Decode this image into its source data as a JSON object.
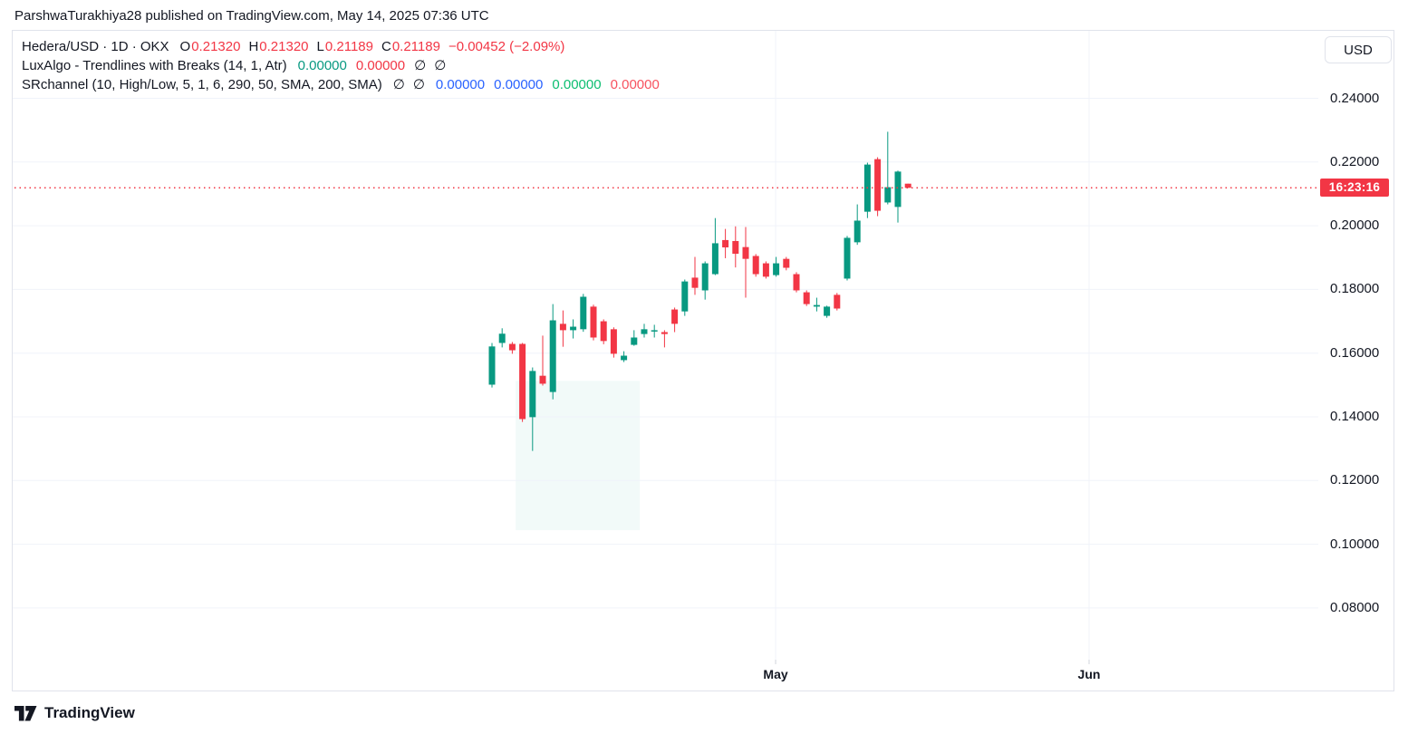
{
  "attribution": "ParshwaTurakhiya28 published on TradingView.com, May 14, 2025 07:36 UTC",
  "legend": {
    "rows": [
      {
        "name": "symbol-legend-row",
        "parts": [
          {
            "text": "Hedera/USD · 1D · OKX",
            "color": "#131722",
            "pad": 12
          },
          {
            "text": "O",
            "color": "#131722",
            "pad": 1
          },
          {
            "text": "0.21320",
            "color": "#F23645",
            "pad": 9
          },
          {
            "text": "H",
            "color": "#131722",
            "pad": 1
          },
          {
            "text": "0.21320",
            "color": "#F23645",
            "pad": 9
          },
          {
            "text": "L",
            "color": "#131722",
            "pad": 1
          },
          {
            "text": "0.21189",
            "color": "#F23645",
            "pad": 9
          },
          {
            "text": "C",
            "color": "#131722",
            "pad": 1
          },
          {
            "text": "0.21189",
            "color": "#F23645",
            "pad": 9
          },
          {
            "text": "−0.00452 (−2.09%)",
            "color": "#F23645",
            "pad": 0
          }
        ]
      },
      {
        "name": "luxalgo-legend-row",
        "parts": [
          {
            "text": "LuxAlgo - Trendlines with Breaks (14, 1, Atr)",
            "color": "#131722",
            "pad": 12
          },
          {
            "text": "0.00000",
            "color": "#089981",
            "pad": 10
          },
          {
            "text": "0.00000",
            "color": "#F23645",
            "pad": 10
          },
          {
            "text": "∅",
            "color": "#131722",
            "pad": 9
          },
          {
            "text": "∅",
            "color": "#131722",
            "pad": 0
          }
        ]
      },
      {
        "name": "srchannel-legend-row",
        "parts": [
          {
            "text": "SRchannel (10, High/Low, 5, 1, 6, 290, 50, SMA, 200, SMA)",
            "color": "#131722",
            "pad": 12
          },
          {
            "text": "∅",
            "color": "#131722",
            "pad": 9
          },
          {
            "text": "∅",
            "color": "#131722",
            "pad": 12
          },
          {
            "text": "0.00000",
            "color": "#2962FF",
            "pad": 10
          },
          {
            "text": "0.00000",
            "color": "#2962FF",
            "pad": 10
          },
          {
            "text": "0.00000",
            "color": "#0CBE71",
            "pad": 10
          },
          {
            "text": "0.00000",
            "color": "#F7525F",
            "pad": 0
          }
        ]
      }
    ]
  },
  "price_scale": {
    "currency_button": "USD",
    "countdown": "16:23:16"
  },
  "footer": {
    "brand": "TradingView"
  },
  "colors": {
    "up": "#089981",
    "down": "#F23645",
    "price_line": "#F23645",
    "countdown_bg": "#F23645",
    "grid": "#F0F3FA",
    "axis_tick": "#D1D4DC",
    "border": "#E0E3EB",
    "text": "#131722",
    "channel_tint": "rgba(8,153,129,0.05)"
  },
  "chart_data": {
    "type": "candlestick",
    "title": "Hedera/USD · 1D · OKX",
    "last_bar": {
      "open": 0.2132,
      "high": 0.2132,
      "low": 0.21189,
      "close": 0.21189,
      "change": -0.00452,
      "change_pct": -2.09
    },
    "price_line_value": 0.21189,
    "y_axis": {
      "side": "right",
      "ticks": [
        {
          "value": 0.24,
          "label": "0.24000"
        },
        {
          "value": 0.22,
          "label": "0.22000"
        },
        {
          "value": 0.2,
          "label": "0.20000"
        },
        {
          "value": 0.18,
          "label": "0.18000"
        },
        {
          "value": 0.16,
          "label": "0.16000"
        },
        {
          "value": 0.14,
          "label": "0.14000"
        },
        {
          "value": 0.12,
          "label": "0.12000"
        },
        {
          "value": 0.1,
          "label": "0.10000"
        },
        {
          "value": 0.08,
          "label": "0.08000"
        }
      ]
    },
    "x_axis": {
      "labels": [
        {
          "text": "May",
          "at_index": 27.95
        },
        {
          "text": "Jun",
          "at_index": 58.84
        }
      ]
    },
    "channel_zone": {
      "price_top": 0.1513,
      "price_bottom": 0.1044,
      "from_index": 2.6,
      "to_index": 14.3
    },
    "candles": [
      [
        0.1501,
        0.1632,
        0.1492,
        0.1621
      ],
      [
        0.1632,
        0.1678,
        0.1618,
        0.1661
      ],
      [
        0.1629,
        0.1635,
        0.1598,
        0.1609
      ],
      [
        0.1629,
        0.1632,
        0.1384,
        0.1393
      ],
      [
        0.1399,
        0.1555,
        0.1293,
        0.1544
      ],
      [
        0.1529,
        0.1655,
        0.1498,
        0.1504
      ],
      [
        0.1478,
        0.1754,
        0.1455,
        0.1703
      ],
      [
        0.1692,
        0.1734,
        0.162,
        0.1672
      ],
      [
        0.1672,
        0.1706,
        0.1646,
        0.1683
      ],
      [
        0.1675,
        0.1786,
        0.1667,
        0.1777
      ],
      [
        0.1746,
        0.1752,
        0.164,
        0.1649
      ],
      [
        0.17,
        0.1706,
        0.1628,
        0.1638
      ],
      [
        0.1675,
        0.1681,
        0.1586,
        0.1598
      ],
      [
        0.1578,
        0.1606,
        0.1572,
        0.1592
      ],
      [
        0.1626,
        0.1672,
        0.1623,
        0.1649
      ],
      [
        0.166,
        0.1692,
        0.1649,
        0.1675
      ],
      [
        0.1669,
        0.1689,
        0.1649,
        0.1672
      ],
      [
        0.1666,
        0.1672,
        0.1618,
        0.166
      ],
      [
        0.1737,
        0.1743,
        0.1666,
        0.1692
      ],
      [
        0.1731,
        0.1831,
        0.1717,
        0.1825
      ],
      [
        0.1837,
        0.1902,
        0.1783,
        0.1805
      ],
      [
        0.1797,
        0.1888,
        0.1768,
        0.1882
      ],
      [
        0.1848,
        0.2024,
        0.1845,
        0.1945
      ],
      [
        0.1955,
        0.199,
        0.1898,
        0.1932
      ],
      [
        0.1952,
        0.1998,
        0.1869,
        0.1912
      ],
      [
        0.1933,
        0.1996,
        0.1774,
        0.1896
      ],
      [
        0.1905,
        0.1911,
        0.184,
        0.1848
      ],
      [
        0.1882,
        0.1888,
        0.1834,
        0.184
      ],
      [
        0.1845,
        0.1902,
        0.184,
        0.1882
      ],
      [
        0.1896,
        0.1902,
        0.186,
        0.1868
      ],
      [
        0.1848,
        0.1854,
        0.1791,
        0.1797
      ],
      [
        0.1791,
        0.1797,
        0.1748,
        0.1754
      ],
      [
        0.1746,
        0.1774,
        0.1731,
        0.1751
      ],
      [
        0.1717,
        0.1749,
        0.1711,
        0.1746
      ],
      [
        0.1783,
        0.1789,
        0.1734,
        0.174
      ],
      [
        0.1834,
        0.1968,
        0.1828,
        0.1962
      ],
      [
        0.1948,
        0.2067,
        0.194,
        0.2016
      ],
      [
        0.2044,
        0.2198,
        0.2024,
        0.2192
      ],
      [
        0.2209,
        0.2215,
        0.203,
        0.2047
      ],
      [
        0.2073,
        0.2295,
        0.2067,
        0.2121
      ],
      [
        0.2059,
        0.2173,
        0.201,
        0.217
      ],
      [
        0.2132,
        0.2132,
        0.21189,
        0.21189
      ]
    ]
  }
}
